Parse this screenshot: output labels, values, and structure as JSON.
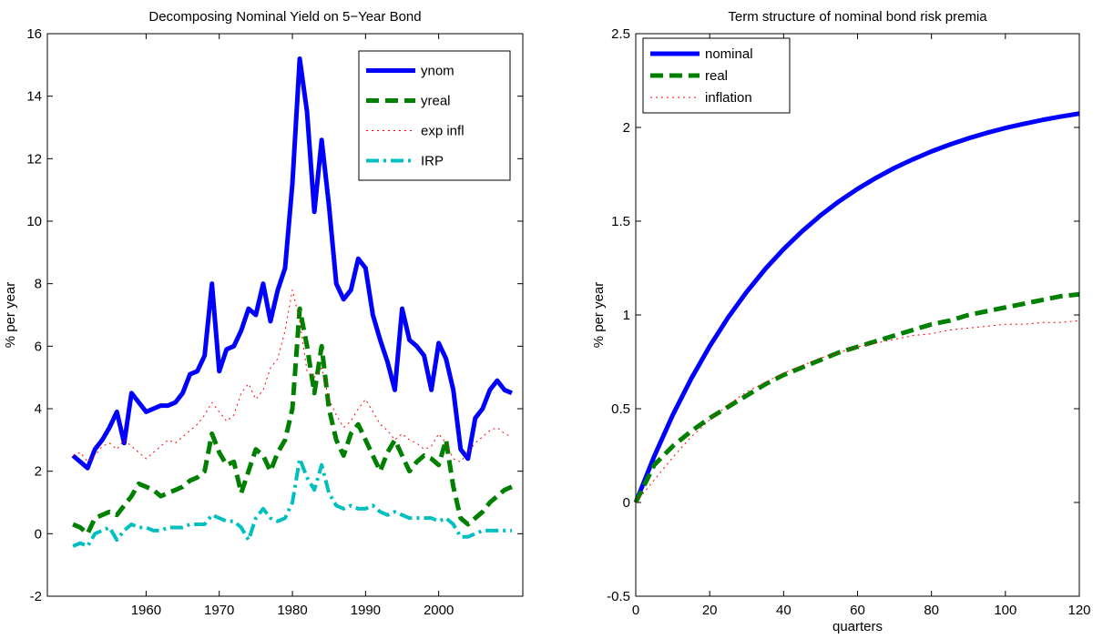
{
  "chart_data": [
    {
      "type": "line",
      "title": "Decomposing Nominal Yield on 5−Year Bond",
      "ylabel": "% per year",
      "legend": "upper right",
      "xlim": [
        1946.5,
        2011.5
      ],
      "xticks": [
        1960,
        1970,
        1980,
        1990,
        2000
      ],
      "ylim": [
        -2,
        16
      ],
      "yticks": [
        -2,
        0,
        2,
        4,
        6,
        8,
        10,
        12,
        14,
        16
      ],
      "x": [
        1950,
        1951,
        1952,
        1953,
        1954,
        1955,
        1956,
        1957,
        1958,
        1959,
        1960,
        1961,
        1962,
        1963,
        1964,
        1965,
        1966,
        1967,
        1968,
        1969,
        1970,
        1971,
        1972,
        1973,
        1974,
        1975,
        1976,
        1977,
        1978,
        1979,
        1980,
        1981,
        1982,
        1983,
        1984,
        1985,
        1986,
        1987,
        1988,
        1989,
        1990,
        1991,
        1992,
        1993,
        1994,
        1995,
        1996,
        1997,
        1998,
        1999,
        2000,
        2001,
        2002,
        2003,
        2004,
        2005,
        2006,
        2007,
        2008,
        2009,
        2010
      ],
      "series": [
        {
          "name": "ynom",
          "color": "#0000ff",
          "style": "solid",
          "width": 5,
          "values": [
            2.5,
            2.3,
            2.1,
            2.7,
            3.0,
            3.4,
            3.9,
            2.9,
            4.5,
            4.2,
            3.9,
            4.0,
            4.1,
            4.1,
            4.2,
            4.5,
            5.1,
            5.2,
            5.7,
            8.0,
            5.2,
            5.9,
            6.0,
            6.5,
            7.2,
            7.0,
            8.0,
            6.8,
            7.8,
            8.5,
            11.2,
            15.2,
            13.5,
            10.3,
            12.6,
            10.5,
            8.0,
            7.5,
            7.8,
            8.8,
            8.5,
            7.0,
            6.2,
            5.5,
            4.6,
            7.2,
            6.2,
            6.0,
            5.7,
            4.6,
            6.1,
            5.6,
            4.6,
            2.7,
            2.4,
            3.7,
            4.0,
            4.6,
            4.9,
            4.6,
            4.5
          ]
        },
        {
          "name": "yreal",
          "color": "#008000",
          "style": "dashed",
          "width": 5,
          "values": [
            0.3,
            0.2,
            0.0,
            0.5,
            0.6,
            0.7,
            0.6,
            0.9,
            1.2,
            1.6,
            1.5,
            1.4,
            1.2,
            1.3,
            1.4,
            1.5,
            1.7,
            1.8,
            2.0,
            3.2,
            2.6,
            2.2,
            2.3,
            1.3,
            2.0,
            2.7,
            2.5,
            2.0,
            2.6,
            3.0,
            4.0,
            7.2,
            6.0,
            4.5,
            6.0,
            4.0,
            3.0,
            2.5,
            3.2,
            3.5,
            3.0,
            2.5,
            2.0,
            2.6,
            3.0,
            2.5,
            2.0,
            2.3,
            2.5,
            2.4,
            2.2,
            3.0,
            1.5,
            0.5,
            0.3,
            0.5,
            0.7,
            1.0,
            1.2,
            1.4,
            1.5
          ]
        },
        {
          "name": "exp infl",
          "color": "#ff0000",
          "style": "dotted",
          "width": 1,
          "values": [
            2.5,
            2.6,
            2.3,
            2.5,
            2.8,
            2.9,
            2.7,
            3.0,
            2.8,
            2.6,
            2.4,
            2.6,
            2.8,
            3.0,
            2.9,
            3.1,
            3.3,
            3.5,
            3.8,
            4.2,
            3.9,
            3.6,
            3.8,
            4.5,
            4.8,
            4.3,
            4.6,
            5.3,
            5.6,
            6.5,
            7.8,
            6.8,
            5.2,
            5.0,
            5.3,
            4.3,
            3.8,
            3.4,
            3.6,
            4.0,
            4.3,
            3.9,
            3.5,
            3.3,
            3.0,
            3.2,
            3.0,
            2.9,
            2.7,
            2.8,
            3.2,
            2.9,
            2.4,
            2.3,
            2.6,
            2.9,
            3.1,
            3.3,
            3.4,
            3.2,
            3.1
          ]
        },
        {
          "name": "IRP",
          "color": "#00bfbf",
          "style": "dashdot",
          "width": 4,
          "values": [
            -0.4,
            -0.3,
            -0.4,
            0.0,
            0.1,
            0.2,
            -0.2,
            0.1,
            0.3,
            0.2,
            0.2,
            0.1,
            0.1,
            0.2,
            0.2,
            0.2,
            0.3,
            0.3,
            0.3,
            0.6,
            0.5,
            0.4,
            0.4,
            0.2,
            -0.2,
            0.5,
            0.8,
            0.5,
            0.4,
            0.5,
            1.0,
            2.4,
            1.8,
            1.4,
            2.2,
            1.3,
            0.9,
            0.8,
            0.9,
            0.8,
            0.8,
            0.9,
            0.7,
            0.6,
            0.7,
            0.6,
            0.5,
            0.5,
            0.5,
            0.5,
            0.4,
            0.5,
            0.3,
            -0.1,
            -0.1,
            0.0,
            0.1,
            0.1,
            0.1,
            0.1,
            0.1
          ]
        }
      ]
    },
    {
      "type": "line",
      "title": "Term structure of nominal bond risk premia",
      "ylabel": "% per year",
      "xlabel": "quarters",
      "legend": "upper left",
      "xlim": [
        0,
        120
      ],
      "xticks": [
        0,
        20,
        40,
        60,
        80,
        100,
        120
      ],
      "ylim": [
        -0.5,
        2.5
      ],
      "yticks": [
        -0.5,
        0,
        0.5,
        1,
        1.5,
        2,
        2.5
      ],
      "x": [
        0,
        5,
        10,
        15,
        20,
        25,
        30,
        35,
        40,
        45,
        50,
        55,
        60,
        65,
        70,
        75,
        80,
        85,
        90,
        95,
        100,
        105,
        110,
        115,
        120
      ],
      "series": [
        {
          "name": "nominal",
          "color": "#0000ff",
          "style": "solid",
          "width": 5,
          "values": [
            0,
            0.246,
            0.466,
            0.66,
            0.833,
            0.987,
            1.123,
            1.244,
            1.351,
            1.446,
            1.531,
            1.606,
            1.672,
            1.731,
            1.784,
            1.83,
            1.872,
            1.909,
            1.942,
            1.971,
            1.997,
            2.019,
            2.04,
            2.058,
            2.074
          ]
        },
        {
          "name": "real",
          "color": "#008000",
          "style": "dashed",
          "width": 5,
          "values": [
            0,
            0.2,
            0.3,
            0.38,
            0.45,
            0.51,
            0.57,
            0.63,
            0.68,
            0.72,
            0.76,
            0.8,
            0.83,
            0.86,
            0.89,
            0.92,
            0.95,
            0.97,
            1.0,
            1.02,
            1.04,
            1.06,
            1.08,
            1.1,
            1.11
          ]
        },
        {
          "name": "inflation",
          "color": "#ff0000",
          "style": "dotted",
          "width": 1,
          "values": [
            0,
            0.12,
            0.24,
            0.35,
            0.44,
            0.52,
            0.59,
            0.64,
            0.69,
            0.73,
            0.77,
            0.8,
            0.83,
            0.85,
            0.87,
            0.89,
            0.9,
            0.92,
            0.93,
            0.94,
            0.95,
            0.95,
            0.96,
            0.96,
            0.97
          ]
        }
      ]
    }
  ]
}
